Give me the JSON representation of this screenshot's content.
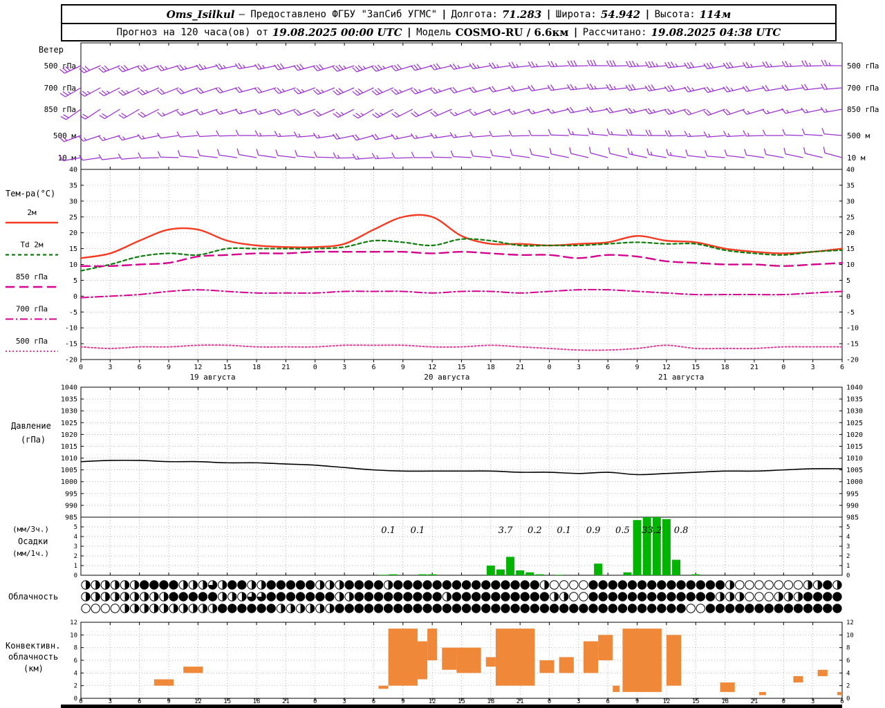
{
  "header": {
    "line1": {
      "station": "Oms_Isilkul",
      "provider": "— Предоставлено ФГБУ \"ЗапСиб УГМС\"",
      "sep": "|",
      "lon_label": "Долгота:",
      "lon_value": "71.283",
      "lat_label": "Широта:",
      "lat_value": "54.942",
      "alt_label": "Высота:",
      "alt_value": "114м"
    },
    "line2": {
      "prefix": "Прогноз на 120 часа(ов) от",
      "run_time": "19.08.2025 00:00 UTC",
      "sep": "|",
      "model_label": "Модель",
      "model_value": "COSMO-RU / 6.6км",
      "calc_label": "Рассчитано:",
      "calc_value": "19.08.2025 04:38 UTC"
    }
  },
  "colors": {
    "grid": "#999999",
    "frame": "#000000",
    "wind": "#9a2fd0",
    "background": "#ffffff"
  },
  "chart_data": {
    "axis": {
      "total_hours": 78,
      "hour_step": 3,
      "hour_labels": [
        "0",
        "3",
        "6",
        "9",
        "12",
        "15",
        "18",
        "21",
        "0",
        "3",
        "6",
        "9",
        "12",
        "15",
        "18",
        "21",
        "0",
        "3",
        "6",
        "9",
        "12",
        "15",
        "18",
        "21",
        "0",
        "3",
        "6"
      ],
      "date_labels": [
        {
          "text": "19 августа",
          "h": 13.5
        },
        {
          "text": "20 августа",
          "h": 37.5
        },
        {
          "text": "21 августа",
          "h": 61.5
        }
      ]
    },
    "wind": {
      "label": "Ветер",
      "hours": [
        0,
        6,
        12,
        18,
        24,
        30,
        36,
        42,
        48,
        54,
        60,
        66,
        72,
        78
      ],
      "levels": [
        {
          "label": "500 гПа",
          "dirs": [
            245,
            250,
            255,
            260,
            255,
            250,
            255,
            260,
            265,
            270,
            265,
            260,
            265,
            270
          ],
          "speeds": [
            30,
            30,
            25,
            25,
            30,
            35,
            30,
            25,
            25,
            30,
            35,
            30,
            25,
            25
          ]
        },
        {
          "label": "700 гПа",
          "dirs": [
            240,
            245,
            250,
            255,
            250,
            245,
            250,
            255,
            260,
            265,
            260,
            255,
            260,
            265
          ],
          "speeds": [
            25,
            25,
            20,
            20,
            25,
            30,
            25,
            20,
            20,
            25,
            30,
            25,
            20,
            20
          ]
        },
        {
          "label": "850 гПа",
          "dirs": [
            235,
            240,
            250,
            255,
            250,
            240,
            245,
            250,
            255,
            260,
            255,
            250,
            255,
            260
          ],
          "speeds": [
            20,
            20,
            15,
            15,
            20,
            25,
            20,
            15,
            15,
            20,
            25,
            20,
            15,
            15
          ]
        },
        {
          "label": "500 м",
          "dirs": [
            250,
            255,
            265,
            270,
            265,
            255,
            260,
            265,
            270,
            275,
            270,
            265,
            270,
            275
          ],
          "speeds": [
            15,
            15,
            10,
            12,
            15,
            20,
            15,
            12,
            10,
            15,
            20,
            15,
            12,
            10
          ]
        },
        {
          "label": "10 м",
          "dirs": [
            260,
            265,
            275,
            280,
            275,
            265,
            270,
            275,
            280,
            285,
            280,
            275,
            280,
            285
          ],
          "speeds": [
            10,
            10,
            8,
            8,
            10,
            15,
            10,
            8,
            8,
            10,
            15,
            10,
            8,
            8
          ]
        }
      ]
    },
    "temperature": {
      "type": "line",
      "title": "Тем-ра(°C)",
      "ylim": [
        -20,
        40
      ],
      "yticks": [
        40,
        35,
        30,
        25,
        20,
        15,
        10,
        5,
        0,
        -5,
        -10,
        -15,
        -20
      ],
      "hours_step": 3,
      "series": [
        {
          "name": "2м",
          "color": "#f53a22",
          "style": "solid",
          "width": 2.4,
          "values": [
            12,
            13.5,
            17.5,
            21,
            21,
            17.5,
            16,
            15.5,
            15.5,
            16.5,
            21,
            25,
            25,
            19,
            16.5,
            16.5,
            16,
            16.5,
            17,
            19,
            17.5,
            17,
            15,
            14,
            13.5,
            14,
            15
          ]
        },
        {
          "name": "Td 2м",
          "color": "#0c7c0c",
          "style": "dashed",
          "width": 2.2,
          "values": [
            8,
            10,
            12.5,
            13.5,
            13,
            15,
            15,
            15,
            15,
            15.5,
            17.5,
            17,
            16,
            18,
            17.5,
            16,
            16,
            16,
            16.5,
            17,
            16.5,
            16.5,
            14.5,
            13.5,
            13,
            14,
            14.5
          ]
        },
        {
          "name": "850 гПа",
          "color": "#d6008e",
          "style": "longdash",
          "width": 2.4,
          "values": [
            9.5,
            9.5,
            10,
            10.5,
            12.5,
            13,
            13.5,
            13.5,
            14,
            14,
            14,
            14,
            13.5,
            14,
            13.5,
            13,
            13,
            12,
            13,
            12.5,
            11,
            10.5,
            10,
            10,
            9.5,
            10,
            10.5
          ]
        },
        {
          "name": "700 гПа",
          "color": "#d6008e",
          "style": "dashdot",
          "width": 2.0,
          "values": [
            -0.5,
            0,
            0.5,
            1.5,
            2,
            1.5,
            1,
            1,
            1,
            1.5,
            1.5,
            1.5,
            1,
            1.5,
            1.5,
            1,
            1.5,
            2,
            2,
            1.5,
            1,
            0.5,
            0.5,
            0.5,
            0.5,
            1,
            1.5
          ]
        },
        {
          "name": "500 гПа",
          "color": "#e23a96",
          "style": "dotted",
          "width": 2.0,
          "values": [
            -16,
            -16.5,
            -16,
            -16,
            -15.5,
            -15.5,
            -16,
            -16,
            -16,
            -15.5,
            -15.5,
            -15.5,
            -16,
            -16,
            -15.5,
            -16,
            -16.5,
            -17,
            -17,
            -16.5,
            -15.5,
            -16.5,
            -16.5,
            -16.5,
            -16,
            -16,
            -16
          ]
        }
      ]
    },
    "pressure": {
      "type": "line",
      "label_lines": [
        "Давление",
        "(гПа)"
      ],
      "ylim": [
        985,
        1040
      ],
      "yticks": [
        1040,
        1035,
        1030,
        1025,
        1020,
        1015,
        1010,
        1005,
        1000,
        995,
        990,
        985
      ],
      "hours_step": 3,
      "color": "#000000",
      "values": [
        1008.5,
        1009,
        1009,
        1008.5,
        1008.5,
        1008,
        1008,
        1007.5,
        1007,
        1006,
        1005,
        1004.5,
        1004.5,
        1004.5,
        1004.5,
        1004,
        1004,
        1003.5,
        1004,
        1003,
        1003.5,
        1004,
        1004.5,
        1004.5,
        1005,
        1005.5,
        1005.5
      ]
    },
    "precipitation": {
      "type": "bar",
      "label_lines": [
        "(мм/3ч.)",
        "Осадки",
        "(мм/1ч.)"
      ],
      "ylim": [
        0,
        6
      ],
      "yticks": [
        0,
        1,
        2,
        3,
        4,
        5
      ],
      "color": "#00b400",
      "bars": [
        [
          31,
          0.05
        ],
        [
          32,
          0.1
        ],
        [
          35,
          0.1
        ],
        [
          36,
          0.1
        ],
        [
          42,
          1.0
        ],
        [
          43,
          0.6
        ],
        [
          44,
          1.9
        ],
        [
          45,
          0.5
        ],
        [
          46,
          0.3
        ],
        [
          47,
          0.1
        ],
        [
          49,
          0.05
        ],
        [
          53,
          1.2
        ],
        [
          56,
          0.3
        ],
        [
          57,
          5.7
        ],
        [
          58,
          6
        ],
        [
          59,
          6
        ],
        [
          60,
          5.8
        ],
        [
          61,
          1.6
        ],
        [
          63,
          0.1
        ]
      ],
      "labels_3h": [
        [
          31.5,
          "0.1"
        ],
        [
          34.5,
          "0.1"
        ],
        [
          43.5,
          "3.7"
        ],
        [
          46.5,
          "0.2"
        ],
        [
          49.5,
          "0.1"
        ],
        [
          52.5,
          "0.9"
        ],
        [
          55.5,
          "0.5"
        ],
        [
          58.5,
          "33.2"
        ],
        [
          61.5,
          "0.8"
        ]
      ]
    },
    "cloudiness": {
      "label": "Облачность",
      "rows": [
        "222222444422232442244444222444424444444444444442000044444444444444200000002242",
        "222222222444442223344444442244444444424444444444220044444444444442220002224444",
        "000022222222224444442222224444444444444444444444444444444444440044444444444444"
      ]
    },
    "convective": {
      "type": "range-bar",
      "label_lines": [
        "Конвективн.",
        "облачность",
        "(км)"
      ],
      "ylim": [
        0,
        12
      ],
      "yticks": [
        0,
        2,
        4,
        6,
        8,
        10,
        12
      ],
      "color": "#f0883a",
      "bars": [
        [
          7.5,
          9.5,
          2,
          3
        ],
        [
          10.5,
          12.5,
          4,
          5
        ],
        [
          30.5,
          31.5,
          1.5,
          2
        ],
        [
          31.5,
          34.5,
          2,
          11
        ],
        [
          34.5,
          35.5,
          3,
          9
        ],
        [
          35.5,
          36.5,
          6,
          11
        ],
        [
          37,
          38.5,
          4.5,
          8
        ],
        [
          38.5,
          41,
          4,
          8
        ],
        [
          41.5,
          42.5,
          5,
          6.5
        ],
        [
          42.5,
          46.5,
          2,
          11
        ],
        [
          47,
          48.5,
          4,
          6
        ],
        [
          49,
          50.5,
          4,
          6.5
        ],
        [
          51.5,
          53,
          4,
          9
        ],
        [
          53,
          54.5,
          6,
          10
        ],
        [
          54.5,
          55.2,
          1,
          2
        ],
        [
          55.5,
          59.5,
          1,
          11
        ],
        [
          60,
          61.5,
          2,
          10
        ],
        [
          65.5,
          67,
          1,
          2.5
        ],
        [
          69.5,
          70.2,
          0.5,
          1
        ],
        [
          73,
          74,
          2.5,
          3.5
        ],
        [
          75.5,
          76.5,
          3.5,
          4.5
        ],
        [
          77.5,
          78,
          0.5,
          1
        ]
      ]
    }
  }
}
